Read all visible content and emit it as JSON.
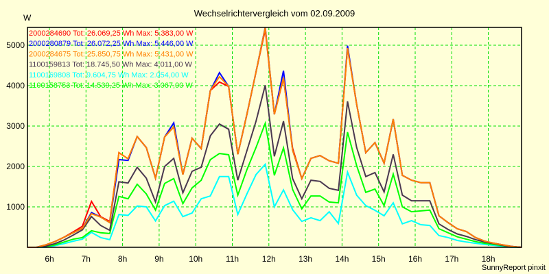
{
  "chart_data": {
    "type": "line",
    "title": "Wechselrichtervergleich vom 02.09.2009",
    "ylabel": "W",
    "xlabel": "",
    "ylim": [
      0,
      5440
    ],
    "xlim": [
      5.4,
      18.9
    ],
    "grid": true,
    "legend_position": "top-left",
    "yticks": [
      1000,
      2000,
      3000,
      4000,
      5000
    ],
    "ytick_labels": [
      "1000",
      "2000",
      "3000",
      "4000",
      "5000"
    ],
    "xticks": [
      6,
      7,
      8,
      9,
      10,
      11,
      12,
      13,
      14,
      15,
      16,
      17,
      18
    ],
    "xtick_labels": [
      "6h",
      "7h",
      "8h",
      "9h",
      "10h",
      "11h",
      "12h",
      "13h",
      "14h",
      "15h",
      "16h",
      "17h",
      "18h"
    ],
    "x": [
      5.4,
      5.65,
      5.9,
      6.15,
      6.4,
      6.65,
      6.9,
      7.15,
      7.4,
      7.65,
      7.9,
      8.15,
      8.4,
      8.65,
      8.9,
      9.15,
      9.4,
      9.65,
      9.9,
      10.15,
      10.4,
      10.65,
      10.9,
      11.15,
      11.4,
      11.65,
      11.9,
      12.15,
      12.4,
      12.65,
      12.9,
      13.15,
      13.4,
      13.65,
      13.9,
      14.15,
      14.4,
      14.65,
      14.9,
      15.15,
      15.4,
      15.65,
      15.9,
      16.15,
      16.4,
      16.65,
      16.9,
      17.15,
      17.4,
      17.65,
      17.9,
      18.15,
      18.4,
      18.65,
      18.9
    ],
    "series": [
      {
        "name": "1100169808",
        "legend": "1100169808 Tot: 9.604,75 Wh Max: 2.054,00 W",
        "color": "#00ffff",
        "values": [
          0,
          0,
          0,
          40,
          90,
          150,
          200,
          370,
          240,
          190,
          810,
          790,
          1020,
          1000,
          650,
          1030,
          1140,
          760,
          850,
          1200,
          1270,
          1750,
          1750,
          810,
          1320,
          1800,
          2054,
          1000,
          1420,
          930,
          640,
          730,
          660,
          880,
          590,
          1860,
          1290,
          1030,
          915,
          780,
          1100,
          580,
          660,
          560,
          540,
          290,
          240,
          170,
          130,
          100,
          70,
          50,
          20,
          0,
          0
        ]
      },
      {
        "name": "1100158753",
        "legend": "1100158753 Tot: 14.539,25 Wh Max: 3.067,00 W",
        "color": "#00ff00",
        "values": [
          0,
          0,
          20,
          60,
          130,
          200,
          240,
          410,
          360,
          340,
          1260,
          1200,
          1560,
          1320,
          920,
          1580,
          1700,
          1080,
          1470,
          1660,
          2170,
          2320,
          2290,
          1290,
          1920,
          2470,
          3067,
          1780,
          2460,
          1430,
          950,
          1270,
          1270,
          1120,
          1100,
          2850,
          2020,
          1360,
          1440,
          1030,
          1810,
          1000,
          880,
          900,
          920,
          460,
          360,
          260,
          200,
          140,
          100,
          70,
          40,
          10,
          0
        ]
      },
      {
        "name": "1100159813",
        "legend": "1100159813 Tot: 18.745,50 Wh Max: 4.011,00 W",
        "color": "#4a3850",
        "values": [
          0,
          0,
          30,
          90,
          180,
          300,
          430,
          760,
          540,
          420,
          1620,
          1590,
          1980,
          1710,
          1120,
          2000,
          2200,
          1350,
          1880,
          1980,
          2760,
          3050,
          2920,
          1660,
          2390,
          3120,
          4011,
          2250,
          3120,
          1700,
          1200,
          1660,
          1630,
          1460,
          1410,
          3610,
          2470,
          1750,
          1850,
          1370,
          2300,
          1290,
          1150,
          1150,
          1150,
          580,
          440,
          330,
          270,
          190,
          130,
          90,
          50,
          15,
          0
        ]
      },
      {
        "name": "2000284690",
        "legend": "2000284690 Tot: 26.069,25 Wh Max: 5.383,00 W",
        "color": "#ff0000",
        "values": [
          0,
          0,
          60,
          140,
          250,
          380,
          520,
          1135,
          760,
          640,
          2340,
          2190,
          2740,
          2470,
          1710,
          2730,
          2980,
          1800,
          2700,
          2440,
          3880,
          4090,
          3980,
          2300,
          3290,
          4340,
          5383,
          3290,
          4180,
          2450,
          1700,
          2200,
          2270,
          2140,
          2080,
          4930,
          3540,
          2340,
          2590,
          2080,
          3170,
          1780,
          1660,
          1600,
          1600,
          780,
          610,
          460,
          390,
          240,
          150,
          100,
          60,
          20,
          0
        ]
      },
      {
        "name": "2000280879",
        "legend": "2000280879 Tot: 26.072,25 Wh Max: 5.446,00 W",
        "color": "#0000ff",
        "values": [
          0,
          0,
          60,
          140,
          250,
          360,
          470,
          860,
          750,
          610,
          2170,
          2150,
          2740,
          2470,
          1710,
          2730,
          3080,
          1800,
          2700,
          2440,
          3880,
          4320,
          3980,
          2300,
          3290,
          4340,
          5446,
          3290,
          4370,
          2400,
          1700,
          2200,
          2270,
          2140,
          2080,
          4990,
          3540,
          2340,
          2590,
          2080,
          3170,
          1780,
          1660,
          1600,
          1600,
          780,
          610,
          460,
          390,
          240,
          150,
          100,
          60,
          20,
          0
        ]
      },
      {
        "name": "2000284675",
        "legend": "2000284675 Tot: 25.850,75 Wh Max: 5.431,00 W",
        "color": "#ff8000",
        "values": [
          0,
          0,
          60,
          140,
          250,
          360,
          470,
          830,
          750,
          610,
          2340,
          2190,
          2740,
          2470,
          1710,
          2730,
          2980,
          1800,
          2700,
          2440,
          3880,
          4220,
          3980,
          2300,
          3290,
          4340,
          5431,
          3290,
          4200,
          2400,
          1700,
          2200,
          2270,
          2140,
          2080,
          4930,
          3540,
          2340,
          2590,
          2080,
          3170,
          1780,
          1660,
          1600,
          1600,
          780,
          610,
          460,
          390,
          240,
          150,
          100,
          60,
          20,
          0
        ]
      }
    ],
    "legend_order": [
      3,
      4,
      5,
      2,
      0,
      1
    ]
  },
  "footer": "SunnyReport pinxit",
  "colors": {
    "background": "#ffffd8",
    "grid": "#00e000"
  }
}
